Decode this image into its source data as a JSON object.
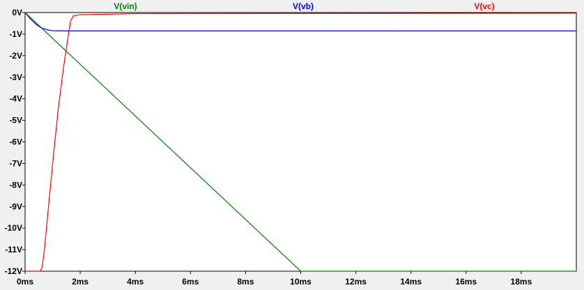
{
  "chart_data": {
    "type": "line",
    "title": "",
    "xlabel": "",
    "ylabel": "",
    "xlim": [
      0,
      20
    ],
    "ylim": [
      -12,
      0
    ],
    "x_ticks": [
      {
        "value": 0,
        "label": "0ms"
      },
      {
        "value": 2,
        "label": "2ms"
      },
      {
        "value": 4,
        "label": "4ms"
      },
      {
        "value": 6,
        "label": "6ms"
      },
      {
        "value": 8,
        "label": "8ms"
      },
      {
        "value": 10,
        "label": "10ms"
      },
      {
        "value": 12,
        "label": "12ms"
      },
      {
        "value": 14,
        "label": "14ms"
      },
      {
        "value": 16,
        "label": "16ms"
      },
      {
        "value": 18,
        "label": "18ms"
      }
    ],
    "y_ticks": [
      {
        "value": 0,
        "label": "0V"
      },
      {
        "value": -1,
        "label": "-1V"
      },
      {
        "value": -2,
        "label": "-2V"
      },
      {
        "value": -3,
        "label": "-3V"
      },
      {
        "value": -4,
        "label": "-4V"
      },
      {
        "value": -5,
        "label": "-5V"
      },
      {
        "value": -6,
        "label": "-6V"
      },
      {
        "value": -7,
        "label": "-7V"
      },
      {
        "value": -8,
        "label": "-8V"
      },
      {
        "value": -9,
        "label": "-9V"
      },
      {
        "value": -10,
        "label": "-10V"
      },
      {
        "value": -11,
        "label": "-11V"
      },
      {
        "value": -12,
        "label": "-12V"
      }
    ],
    "grid": false,
    "legend_placement": "top",
    "series": [
      {
        "name": "V(vin)",
        "color": "#007f00",
        "points": [
          [
            0,
            0
          ],
          [
            10,
            -12
          ],
          [
            20,
            -12
          ]
        ]
      },
      {
        "name": "V(vb)",
        "color": "#0000ff",
        "points": [
          [
            0,
            0
          ],
          [
            0.2,
            -0.3
          ],
          [
            0.4,
            -0.55
          ],
          [
            0.6,
            -0.72
          ],
          [
            0.8,
            -0.8
          ],
          [
            1.0,
            -0.84
          ],
          [
            1.5,
            -0.85
          ],
          [
            20,
            -0.85
          ]
        ]
      },
      {
        "name": "V(vc)",
        "color": "#ff0000",
        "points": [
          [
            0,
            -12
          ],
          [
            0.55,
            -12
          ],
          [
            0.62,
            -11.8
          ],
          [
            0.7,
            -11.0
          ],
          [
            0.85,
            -9.0
          ],
          [
            1.0,
            -7.0
          ],
          [
            1.2,
            -4.5
          ],
          [
            1.4,
            -2.5
          ],
          [
            1.55,
            -1.2
          ],
          [
            1.65,
            -0.4
          ],
          [
            1.75,
            -0.15
          ],
          [
            2.0,
            -0.1
          ],
          [
            4.0,
            -0.05
          ],
          [
            20,
            -0.03
          ]
        ]
      }
    ]
  }
}
